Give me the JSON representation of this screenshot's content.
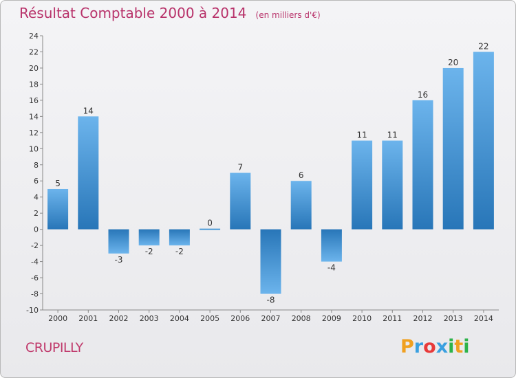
{
  "chart_data": {
    "type": "bar",
    "title": "Résultat Comptable 2000 à 2014",
    "subtitle": "(en milliers d'€)",
    "categories": [
      "2000",
      "2001",
      "2002",
      "2003",
      "2004",
      "2005",
      "2006",
      "2007",
      "2008",
      "2009",
      "2010",
      "2011",
      "2012",
      "2013",
      "2014"
    ],
    "values": [
      5,
      14,
      -3,
      -2,
      -2,
      0,
      7,
      -8,
      6,
      -4,
      11,
      11,
      16,
      20,
      22
    ],
    "ylim": [
      -10,
      24
    ],
    "yticks": [
      -10,
      -8,
      -6,
      -4,
      -2,
      0,
      2,
      4,
      6,
      8,
      10,
      12,
      14,
      16,
      18,
      20,
      22,
      24
    ],
    "xlabel": "",
    "ylabel": "",
    "grid": false,
    "legend": "none"
  },
  "town": "CRUPILLY",
  "logo": {
    "letters": [
      "P",
      "r",
      "o",
      "x",
      "i",
      "t",
      "i"
    ],
    "colors": [
      "#f0a020",
      "#3aa0e0",
      "#e83a3a",
      "#3aa0e0",
      "#2db34a",
      "#f0a020",
      "#2db34a"
    ]
  },
  "colors": {
    "title": "#b8326a",
    "bar_light": "#6cb4ec",
    "bar_dark": "#2876b8"
  }
}
